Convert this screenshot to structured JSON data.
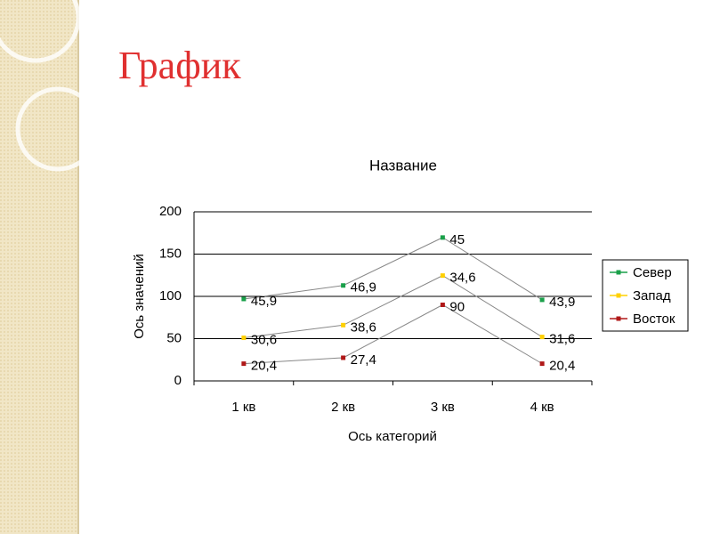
{
  "page_title": "График",
  "chart_data": {
    "type": "line",
    "stacked": true,
    "title": "Название",
    "x_label": "Ось категорий",
    "y_label": "Ось значений",
    "categories": [
      "1 кв",
      "2 кв",
      "3 кв",
      "4 кв"
    ],
    "series": [
      {
        "name": "Восток",
        "color": "#b01818",
        "values": [
          20.4,
          27.4,
          90,
          20.4
        ],
        "value_labels": [
          "20,4",
          "27,4",
          "90",
          "20,4"
        ]
      },
      {
        "name": "Запад",
        "color": "#ffd000",
        "values": [
          30.6,
          38.6,
          34.6,
          31.6
        ],
        "value_labels": [
          "30,6",
          "38,6",
          "34,6",
          "31,6"
        ]
      },
      {
        "name": "Север",
        "color": "#1aa04a",
        "values": [
          45.9,
          46.9,
          45,
          43.9
        ],
        "value_labels": [
          "45,9",
          "46,9",
          "45",
          "43,9"
        ]
      }
    ],
    "legend_order": [
      "Север",
      "Запад",
      "Восток"
    ],
    "ylim": [
      0,
      200
    ],
    "yticks": [
      0,
      50,
      100,
      150,
      200
    ],
    "grid": true,
    "legend": "right"
  }
}
